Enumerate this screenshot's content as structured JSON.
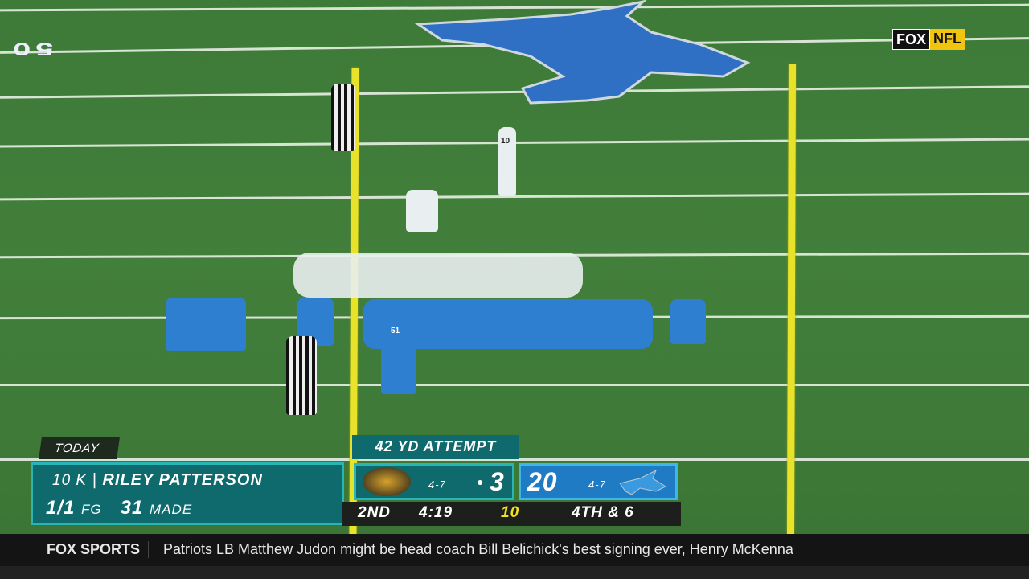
{
  "broadcast": {
    "network_logo": "FOX NFL",
    "logo_fox": "FOX",
    "logo_nfl": "NFL"
  },
  "field": {
    "yard_number": "50",
    "kicker_jersey": "10",
    "snapper_jersey": "51"
  },
  "scorebug": {
    "today_label": "TODAY",
    "player": {
      "number_pos": "10 K",
      "name": "RILEY PATTERSON",
      "fg_made_att": "1/1",
      "fg_label": "FG",
      "long": "31",
      "long_label": "MADE"
    },
    "situation_banner": "42 YD ATTEMPT",
    "away": {
      "team": "Jaguars",
      "record": "4-7",
      "score": "3",
      "possession": true,
      "color": "#0e6a6c"
    },
    "home": {
      "team": "Lions",
      "record": "4-7",
      "score": "20",
      "color": "#1f7cc4"
    },
    "quarter": "2ND",
    "clock": "4:19",
    "play_clock": "10",
    "down_distance": "4TH & 6"
  },
  "ticker": {
    "brand": "FOX SPORTS",
    "headline": "Patriots LB Matthew Judon might be head coach Bill Belichick's best signing ever, Henry McKenna"
  }
}
